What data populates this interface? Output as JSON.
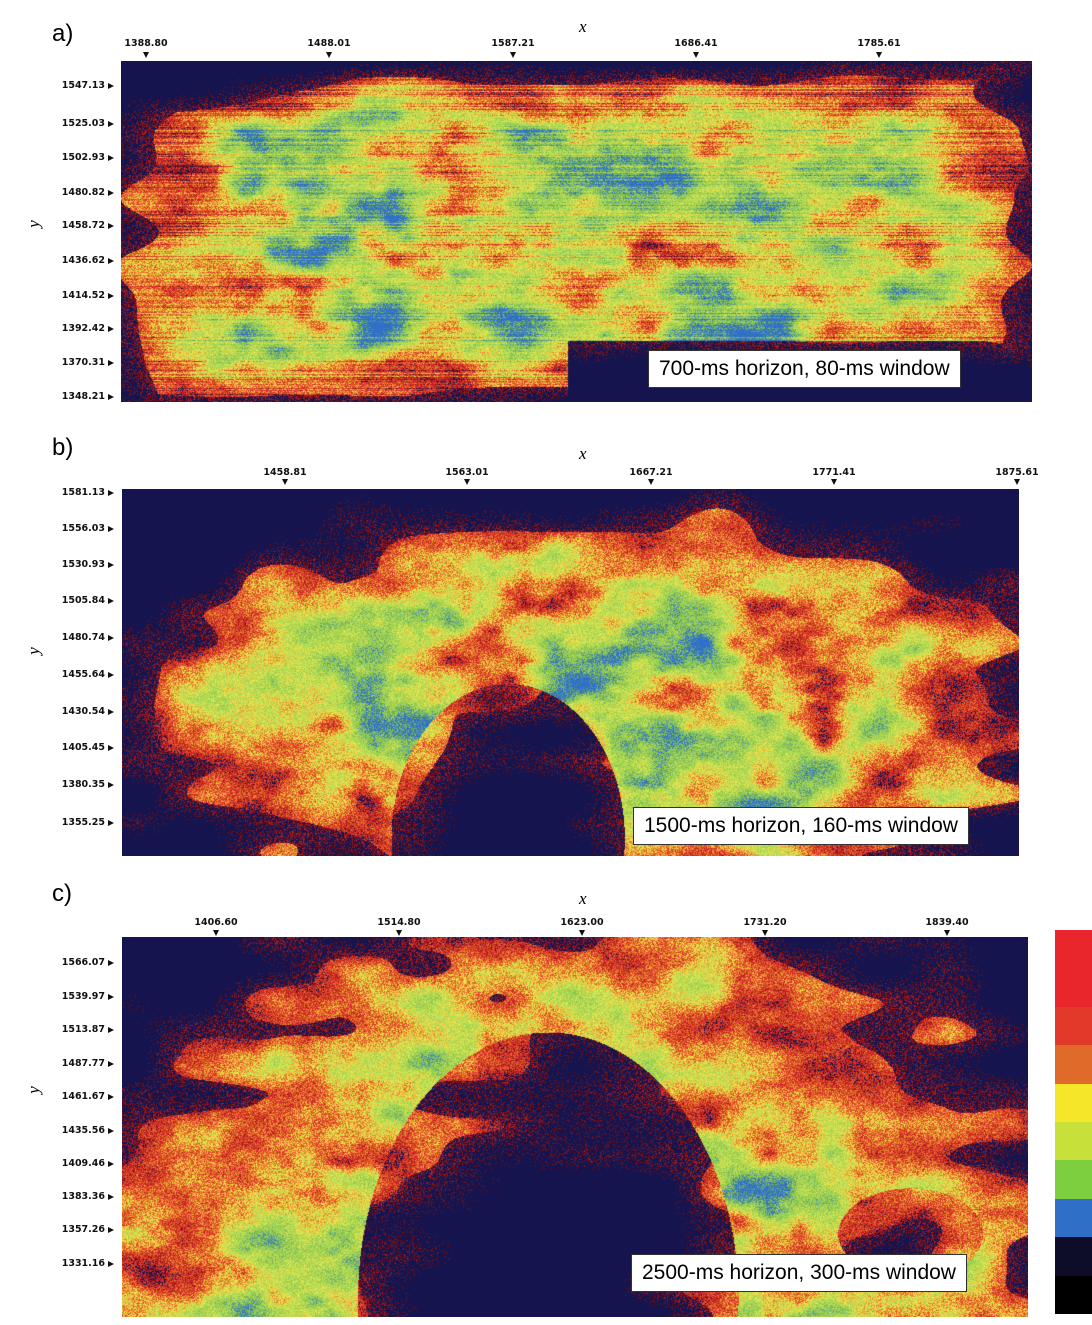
{
  "chart_data": [
    {
      "type": "heatmap",
      "panel": "a)",
      "xlabel": "x",
      "ylabel": "y",
      "x_ticks": [
        "1388.80",
        "1488.01",
        "1587.21",
        "1686.41",
        "1785.61"
      ],
      "y_ticks": [
        "1547.13",
        "1525.03",
        "1502.93",
        "1480.82",
        "1458.72",
        "1436.62",
        "1414.52",
        "1392.42",
        "1370.31",
        "1348.21"
      ],
      "annotation": "700-ms horizon, 80-ms window"
    },
    {
      "type": "heatmap",
      "panel": "b)",
      "xlabel": "x",
      "ylabel": "y",
      "x_ticks": [
        "1458.81",
        "1563.01",
        "1667.21",
        "1771.41",
        "1875.61"
      ],
      "y_ticks": [
        "1581.13",
        "1556.03",
        "1530.93",
        "1505.84",
        "1480.74",
        "1455.64",
        "1430.54",
        "1405.45",
        "1380.35",
        "1355.25"
      ],
      "annotation": "1500-ms horizon, 160-ms window"
    },
    {
      "type": "heatmap",
      "panel": "c)",
      "xlabel": "x",
      "ylabel": "y",
      "x_ticks": [
        "1406.60",
        "1514.80",
        "1623.00",
        "1731.20",
        "1839.40"
      ],
      "y_ticks": [
        "1566.07",
        "1539.97",
        "1513.87",
        "1487.77",
        "1461.67",
        "1435.56",
        "1409.46",
        "1383.36",
        "1357.26",
        "1331.16"
      ],
      "annotation": "2500-ms horizon, 300-ms window"
    }
  ],
  "colorbar": [
    "#e8262b",
    "#e8262b",
    "#e23a2a",
    "#e06a2a",
    "#f5e62a",
    "#c8e03a",
    "#7ecf3e",
    "#2f6fc8",
    "#0d0d2a",
    "#000000"
  ],
  "palette": {
    "background": "#15144f",
    "dark_red": "#6b1010",
    "red": "#d7262a",
    "orange": "#e8752a",
    "yellow": "#f0e84a",
    "light_green": "#b8dc58",
    "green": "#88c84c",
    "blue": "#2f6fc8"
  }
}
